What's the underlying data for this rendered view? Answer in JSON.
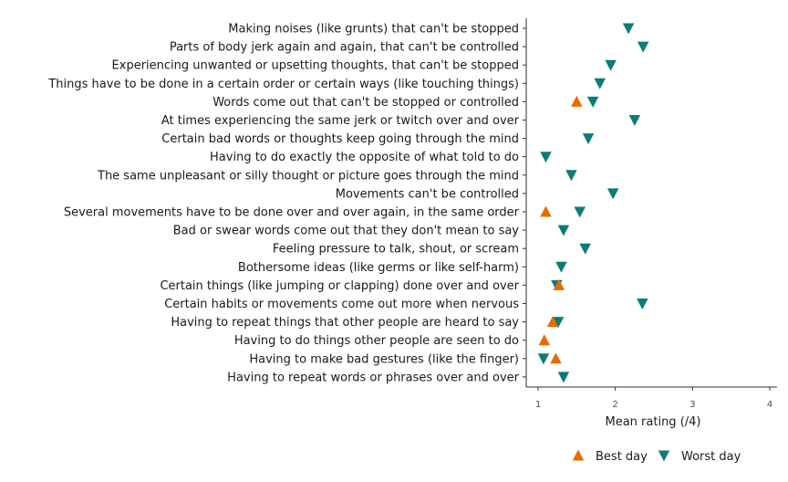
{
  "chart_data": {
    "type": "scatter",
    "orientation": "horizontal-categories",
    "title": "",
    "xlabel": "Mean rating (/4)",
    "ylabel": "",
    "xlim": [
      0.9,
      4.05
    ],
    "xticks": [
      1,
      2,
      3,
      4
    ],
    "grid": false,
    "legend_position": "bottom-right",
    "categories": [
      "Making noises (like grunts) that can't be stopped",
      "Parts of body jerk again and again, that can't be controlled",
      "Experiencing unwanted or upsetting thoughts, that can't be stopped",
      "Things have to be done in a certain order or certain ways (like touching things)",
      "Words come out that can't be stopped or controlled",
      "At times experiencing the same jerk or twitch over and over",
      "Certain bad words or thoughts keep going through the mind",
      "Having to do exactly the opposite of what told to do",
      "The same unpleasant or silly thought or picture goes through the mind",
      "Movements can't be controlled",
      "Several movements have to be done over and over again, in the same order",
      "Bad or swear words come out that they don't mean to say",
      "Feeling pressure to talk, shout, or scream",
      "Bothersome ideas (like germs or like self-harm)",
      "Certain things (like jumping or clapping) done over and over",
      "Certain habits or movements come out more when nervous",
      "Having to repeat things that other people are heard to say",
      "Having to do things other people are seen to do",
      "Having to make bad gestures (like the finger)",
      "Having to repeat words or phrases over and over"
    ],
    "series": [
      {
        "name": "Best day",
        "marker": "triangle-up",
        "color": "#e66c00",
        "values": [
          null,
          null,
          null,
          null,
          1.5,
          null,
          null,
          null,
          null,
          null,
          1.1,
          null,
          null,
          null,
          1.27,
          null,
          1.19,
          1.08,
          1.23,
          null
        ]
      },
      {
        "name": "Worst day",
        "marker": "triangle-down",
        "color": "#0e7b77",
        "values": [
          2.17,
          2.36,
          1.94,
          1.8,
          1.71,
          2.25,
          1.65,
          1.1,
          1.43,
          1.97,
          1.54,
          1.33,
          1.61,
          1.3,
          1.24,
          2.35,
          1.26,
          null,
          1.07,
          1.33
        ]
      }
    ]
  }
}
